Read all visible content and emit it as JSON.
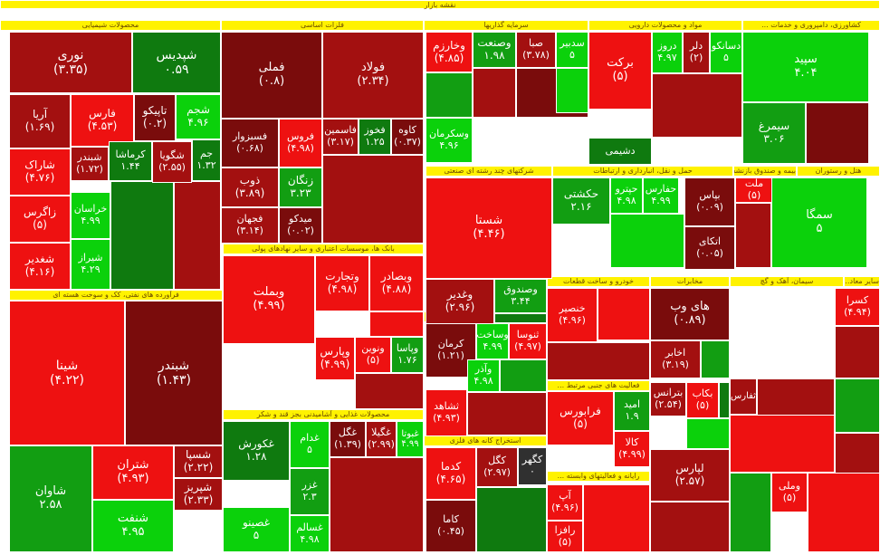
{
  "page_title": "نقشه بازار",
  "chart_data": {
    "type": "treemap",
    "title": "نقشه بازار",
    "colors": {
      "strong_positive": "#0bd10b",
      "positive": "#129e12",
      "mild_positive": "#0f7a0f",
      "strong_negative": "#ee1111",
      "negative": "#a31010",
      "mild_negative": "#7a0c0c",
      "neutral": "#303030",
      "header": "#fff200"
    },
    "sectors": [
      {
        "name": "محصولات شیمیایی"
      },
      {
        "name": "فلزات اساسی"
      },
      {
        "name": "سرمایه گذاریها"
      },
      {
        "name": "مواد و محصولات دارویی"
      },
      {
        "name": "کشاورزی، دامپروری و خدمات ..."
      },
      {
        "name": "فرآورده های نفتی، کک و سوخت هسته ای"
      },
      {
        "name": "بانک ها، موسسات اعتباری و سایر نهادهای پولی"
      },
      {
        "name": "شرکتهای چند رشته ای صنعتی"
      },
      {
        "name": "حمل و نقل، انبارداری و ارتباطات"
      },
      {
        "name": "بیمه و صندوق بازنشست..."
      },
      {
        "name": "هتل و رستوران"
      },
      {
        "name": "محصولات غذایی و آشامیدنی بجز قند و شکر"
      },
      {
        "name": "انبوه سازی املاک و مستغلات"
      },
      {
        "name": "خودرو و ساخت قطعات"
      },
      {
        "name": "مخابرات"
      },
      {
        "name": "سیمان، آهک و گچ"
      },
      {
        "name": "سایر معاد..."
      },
      {
        "name": "فعالیت های جنبی مرتبط ..."
      },
      {
        "name": "استخراج کانه های فلزی"
      },
      {
        "name": "رایانه و فعالیتهای وابسته ..."
      }
    ],
    "cells": [
      {
        "name": "نوری",
        "value": "(۳.۳۵)",
        "pct": -3.35
      },
      {
        "name": "شپدیس",
        "value": "۰.۵۹",
        "pct": 0.59
      },
      {
        "name": "آریا",
        "value": "(۱.۶۹)",
        "pct": -1.69
      },
      {
        "name": "فارس",
        "value": "(۴.۵۳)",
        "pct": -4.53
      },
      {
        "name": "تاپیکو",
        "value": "(۰.۲)",
        "pct": -0.2
      },
      {
        "name": "شجم",
        "value": "۴.۹۶",
        "pct": 4.96
      },
      {
        "name": "شاراک",
        "value": "(۴.۷۶)",
        "pct": -4.76
      },
      {
        "name": "شبندر",
        "value": "(۱.۷۲)",
        "pct": -1.72
      },
      {
        "name": "کرماشا",
        "value": "۱.۴۴",
        "pct": 1.44
      },
      {
        "name": "شگویا",
        "value": "(۲.۵۵)",
        "pct": -2.55
      },
      {
        "name": "جم",
        "value": "۱.۳۲",
        "pct": 1.32
      },
      {
        "name": "زاگرس",
        "value": "(۵)",
        "pct": -5
      },
      {
        "name": "خراسان",
        "value": "۴.۹۹",
        "pct": 4.99
      },
      {
        "name": "شغدیر",
        "value": "(۴.۱۶)",
        "pct": -4.16
      },
      {
        "name": "شیراز",
        "value": "۴.۲۹",
        "pct": 4.29
      },
      {
        "name": "شینا",
        "value": "(۴.۲۲)",
        "pct": -4.22
      },
      {
        "name": "شبندر",
        "value": "(۱.۴۳)",
        "pct": -1.43
      },
      {
        "name": "شاوان",
        "value": "۲.۵۸",
        "pct": 2.58
      },
      {
        "name": "شتران",
        "value": "(۴.۹۳)",
        "pct": -4.93
      },
      {
        "name": "شسپا",
        "value": "(۲.۲۲)",
        "pct": -2.22
      },
      {
        "name": "شپریز",
        "value": "(۲.۳۳)",
        "pct": -2.33
      },
      {
        "name": "شنفت",
        "value": "۴.۹۵",
        "pct": 4.95
      },
      {
        "name": "فملی",
        "value": "(۰.۸)",
        "pct": -0.8
      },
      {
        "name": "فولاد",
        "value": "(۲.۳۴)",
        "pct": -2.34
      },
      {
        "name": "فسبزوار",
        "value": "(۰.۶۸)",
        "pct": -0.68
      },
      {
        "name": "فروس",
        "value": "(۴.۹۸)",
        "pct": -4.98
      },
      {
        "name": "فاسمین",
        "value": "(۳.۱۷)",
        "pct": -3.17
      },
      {
        "name": "فخوز",
        "value": "۱.۲۵",
        "pct": 1.25
      },
      {
        "name": "کاوه",
        "value": "(۰.۳۷)",
        "pct": -0.37
      },
      {
        "name": "ذوب",
        "value": "(۳.۸۹)",
        "pct": -3.89
      },
      {
        "name": "زنگان",
        "value": "۳.۲۳",
        "pct": 3.23
      },
      {
        "name": "فجهان",
        "value": "(۳.۱۴)",
        "pct": -3.14
      },
      {
        "name": "میدکو",
        "value": "(۰.۰۲)",
        "pct": -0.02
      },
      {
        "name": "وخارزم",
        "value": "(۴.۸۵)",
        "pct": -4.85
      },
      {
        "name": "وصنعت",
        "value": "۱.۹۸",
        "pct": 1.98
      },
      {
        "name": "صبا",
        "value": "(۳.۷۸)",
        "pct": -3.78
      },
      {
        "name": "سدبیر",
        "value": "۵",
        "pct": 5
      },
      {
        "name": "وسکرمان",
        "value": "۴.۹۶",
        "pct": 4.96
      },
      {
        "name": "برکت",
        "value": "(۵)",
        "pct": -5
      },
      {
        "name": "دروز",
        "value": "۴.۹۷",
        "pct": 4.97
      },
      {
        "name": "دلر",
        "value": "(۲)",
        "pct": -2
      },
      {
        "name": "دسانکو",
        "value": "۵",
        "pct": 5
      },
      {
        "name": "دشیمی",
        "value": "",
        "pct": 1
      },
      {
        "name": "سپید",
        "value": "۴.۰۴",
        "pct": 4.04
      },
      {
        "name": "سیمرغ",
        "value": "۳.۰۶",
        "pct": 3.06
      },
      {
        "name": "شستا",
        "value": "(۴.۴۶)",
        "pct": -4.46
      },
      {
        "name": "حکشتی",
        "value": "۲.۱۶",
        "pct": 2.16
      },
      {
        "name": "حپترو",
        "value": "۴.۹۸",
        "pct": 4.98
      },
      {
        "name": "حفارس",
        "value": "۴.۹۹",
        "pct": 4.99
      },
      {
        "name": "بپاس",
        "value": "(۰.۰۹)",
        "pct": -0.09
      },
      {
        "name": "ملت",
        "value": "(۵)",
        "pct": -5
      },
      {
        "name": "سمگا",
        "value": "۵",
        "pct": 5
      },
      {
        "name": "اتکای",
        "value": "(۰.۰۵)",
        "pct": -0.05
      },
      {
        "name": "وبملت",
        "value": "(۴.۹۹)",
        "pct": -4.99
      },
      {
        "name": "وتجارت",
        "value": "(۴.۹۸)",
        "pct": -4.98
      },
      {
        "name": "وبصادر",
        "value": "(۴.۸۸)",
        "pct": -4.88
      },
      {
        "name": "وپارس",
        "value": "(۴.۹۹)",
        "pct": -4.99
      },
      {
        "name": "ونوین",
        "value": "(۵)",
        "pct": -5
      },
      {
        "name": "وپاسا",
        "value": "۱.۷۶",
        "pct": 1.76
      },
      {
        "name": "وغدیر",
        "value": "(۲.۹۶)",
        "pct": -2.96
      },
      {
        "name": "وصندوق",
        "value": "۳.۴۴",
        "pct": 3.44
      },
      {
        "name": "غکورش",
        "value": "۱.۲۸",
        "pct": 1.28
      },
      {
        "name": "غدام",
        "value": "۵",
        "pct": 5
      },
      {
        "name": "غگل",
        "value": "(۱.۳۹)",
        "pct": -1.39
      },
      {
        "name": "غگیلا",
        "value": "(۲.۹۹)",
        "pct": -2.99
      },
      {
        "name": "غبوتا",
        "value": "۴.۹۹",
        "pct": 4.99
      },
      {
        "name": "غزر",
        "value": "۲.۳",
        "pct": 2.3
      },
      {
        "name": "غصینو",
        "value": "۵",
        "pct": 5
      },
      {
        "name": "غسالم",
        "value": "۴.۹۸",
        "pct": 4.98
      },
      {
        "name": "کرمان",
        "value": "(۱.۲۱)",
        "pct": -1.21
      },
      {
        "name": "وساخت",
        "value": "۴.۹۹",
        "pct": 4.99
      },
      {
        "name": "ثنوسا",
        "value": "(۴.۹۷)",
        "pct": -4.97
      },
      {
        "name": "وآذر",
        "value": "۴.۹۸",
        "pct": 4.98
      },
      {
        "name": "ثشاهد",
        "value": "(۴.۹۳)",
        "pct": -4.93
      },
      {
        "name": "خنصیر",
        "value": "(۴.۹۶)",
        "pct": -4.96
      },
      {
        "name": "های وب",
        "value": "(۰.۸۹)",
        "pct": -0.89
      },
      {
        "name": "اخابر",
        "value": "(۳.۱۹)",
        "pct": -3.19
      },
      {
        "name": "فرابورس",
        "value": "(۵)",
        "pct": -5
      },
      {
        "name": "امید",
        "value": "۱.۹",
        "pct": 1.9
      },
      {
        "name": "کالا",
        "value": "(۴.۹۹)",
        "pct": -4.99
      },
      {
        "name": "بترانس",
        "value": "(۲.۵۴)",
        "pct": -2.54
      },
      {
        "name": "بکاب",
        "value": "(۵)",
        "pct": -5
      },
      {
        "name": "ثفارس",
        "value": "",
        "pct": -2
      },
      {
        "name": "کسرا",
        "value": "(۴.۹۴)",
        "pct": -4.94
      },
      {
        "name": "کگهر",
        "value": "۰",
        "pct": 0
      },
      {
        "name": "کگل",
        "value": "(۲.۹۷)",
        "pct": -2.97
      },
      {
        "name": "کدما",
        "value": "(۴.۶۵)",
        "pct": -4.65
      },
      {
        "name": "کاما",
        "value": "(۰.۴۵)",
        "pct": -0.45
      },
      {
        "name": "لپارس",
        "value": "(۲.۵۷)",
        "pct": -2.57
      },
      {
        "name": "آپ",
        "value": "(۴.۹۶)",
        "pct": -4.96
      },
      {
        "name": "رافزا",
        "value": "(۵)",
        "pct": -5
      },
      {
        "name": "وملی",
        "value": "(۵)",
        "pct": -5
      }
    ]
  }
}
